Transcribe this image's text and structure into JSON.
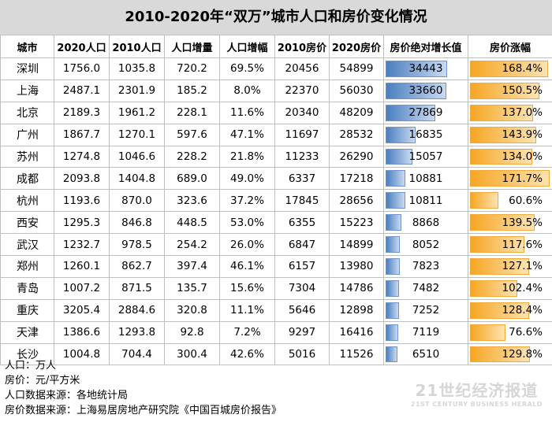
{
  "title": "2010-2020年“双万”城市人口和房价变化情况",
  "headers": [
    "城市",
    "2020人口",
    "2010人口",
    "人口增量",
    "人口增幅",
    "2010房价",
    "2020房价",
    "房价绝对增长值",
    "房价涨幅"
  ],
  "rows": [
    {
      "city": "深圳",
      "pop2020": "1756.0",
      "pop2010": "1035.8",
      "pop_inc": "720.2",
      "pop_rate": "69.5%",
      "price2010": "20456",
      "price2020": "54899",
      "price_abs": "34443",
      "price_rate": "168.4%",
      "abs_value": 34443,
      "rate_value": 168.4
    },
    {
      "city": "上海",
      "pop2020": "2487.1",
      "pop2010": "2301.9",
      "pop_inc": "185.2",
      "pop_rate": "8.0%",
      "price2010": "22370",
      "price2020": "56030",
      "price_abs": "33660",
      "price_rate": "150.5%",
      "abs_value": 33660,
      "rate_value": 150.5
    },
    {
      "city": "北京",
      "pop2020": "2189.3",
      "pop2010": "1961.2",
      "pop_inc": "228.1",
      "pop_rate": "11.6%",
      "price2010": "20340",
      "price2020": "48209",
      "price_abs": "27869",
      "price_rate": "137.0%",
      "abs_value": 27869,
      "rate_value": 137.0
    },
    {
      "city": "广州",
      "pop2020": "1867.7",
      "pop2010": "1270.1",
      "pop_inc": "597.6",
      "pop_rate": "47.1%",
      "price2010": "11697",
      "price2020": "28532",
      "price_abs": "16835",
      "price_rate": "143.9%",
      "abs_value": 16835,
      "rate_value": 143.9
    },
    {
      "city": "苏州",
      "pop2020": "1274.8",
      "pop2010": "1046.6",
      "pop_inc": "228.2",
      "pop_rate": "21.8%",
      "price2010": "11233",
      "price2020": "26290",
      "price_abs": "15057",
      "price_rate": "134.0%",
      "abs_value": 15057,
      "rate_value": 134.0
    },
    {
      "city": "成都",
      "pop2020": "2093.8",
      "pop2010": "1404.8",
      "pop_inc": "689.0",
      "pop_rate": "49.0%",
      "price2010": "6337",
      "price2020": "17218",
      "price_abs": "10881",
      "price_rate": "171.7%",
      "abs_value": 10881,
      "rate_value": 171.7
    },
    {
      "city": "杭州",
      "pop2020": "1193.6",
      "pop2010": "870.0",
      "pop_inc": "323.6",
      "pop_rate": "37.2%",
      "price2010": "17845",
      "price2020": "28656",
      "price_abs": "10811",
      "price_rate": "60.6%",
      "abs_value": 10811,
      "rate_value": 60.6
    },
    {
      "city": "西安",
      "pop2020": "1295.3",
      "pop2010": "846.8",
      "pop_inc": "448.5",
      "pop_rate": "53.0%",
      "price2010": "6355",
      "price2020": "15223",
      "price_abs": "8868",
      "price_rate": "139.5%",
      "abs_value": 8868,
      "rate_value": 139.5
    },
    {
      "city": "武汉",
      "pop2020": "1232.7",
      "pop2010": "978.5",
      "pop_inc": "254.2",
      "pop_rate": "26.0%",
      "price2010": "6847",
      "price2020": "14899",
      "price_abs": "8052",
      "price_rate": "117.6%",
      "abs_value": 8052,
      "rate_value": 117.6
    },
    {
      "city": "郑州",
      "pop2020": "1260.1",
      "pop2010": "862.7",
      "pop_inc": "397.4",
      "pop_rate": "46.1%",
      "price2010": "6157",
      "price2020": "13980",
      "price_abs": "7823",
      "price_rate": "127.1%",
      "abs_value": 7823,
      "rate_value": 127.1
    },
    {
      "city": "青岛",
      "pop2020": "1007.2",
      "pop2010": "871.5",
      "pop_inc": "135.7",
      "pop_rate": "15.6%",
      "price2010": "7304",
      "price2020": "14786",
      "price_abs": "7482",
      "price_rate": "102.4%",
      "abs_value": 7482,
      "rate_value": 102.4
    },
    {
      "city": "重庆",
      "pop2020": "3205.4",
      "pop2010": "2884.6",
      "pop_inc": "320.8",
      "pop_rate": "11.1%",
      "price2010": "5646",
      "price2020": "12898",
      "price_abs": "7252",
      "price_rate": "128.4%",
      "abs_value": 7252,
      "rate_value": 128.4
    },
    {
      "city": "天津",
      "pop2020": "1386.6",
      "pop2010": "1293.8",
      "pop_inc": "92.8",
      "pop_rate": "7.2%",
      "price2010": "9297",
      "price2020": "16416",
      "price_abs": "7119",
      "price_rate": "76.6%",
      "abs_value": 7119,
      "rate_value": 76.6
    },
    {
      "city": "长沙",
      "pop2020": "1004.8",
      "pop2010": "704.4",
      "pop_inc": "300.4",
      "pop_rate": "42.6%",
      "price2010": "5016",
      "price2020": "11526",
      "price_abs": "6510",
      "price_rate": "129.8%",
      "abs_value": 6510,
      "rate_value": 129.8
    }
  ],
  "notes": [
    "人口：万人",
    "房价：元/平方米",
    "人口数据来源：各地统计局",
    "房价数据来源：上海易居房地产研究院《中国百城房价报告》"
  ],
  "watermark": {
    "main": "21世纪经济报道",
    "sub": "21ST CENTURY BUSINESS HERALD"
  },
  "colors": {
    "abs_bar": "#4a7fbf",
    "rate_bar": "#f6a623",
    "title_bg": "#d9d9d9"
  }
}
